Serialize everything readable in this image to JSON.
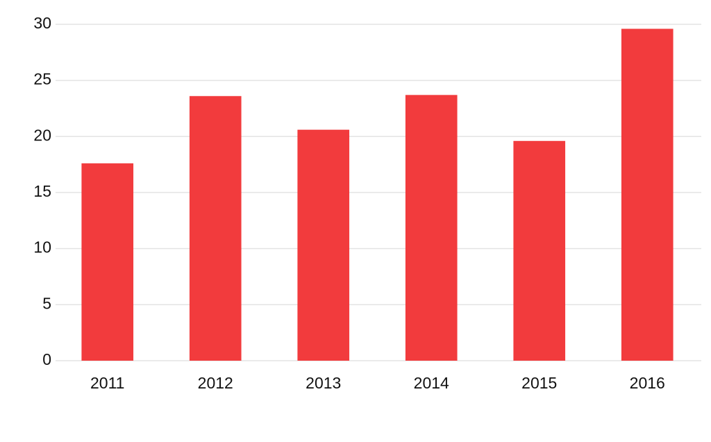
{
  "chart_data": {
    "type": "bar",
    "categories": [
      "2011",
      "2012",
      "2013",
      "2014",
      "2015",
      "2016"
    ],
    "values": [
      17.6,
      23.6,
      20.6,
      23.7,
      19.6,
      29.6
    ],
    "color": "#f23b3d",
    "ylim": [
      0,
      30
    ],
    "yticks": [
      0,
      5,
      10,
      15,
      20,
      25,
      30
    ],
    "grid": true
  }
}
